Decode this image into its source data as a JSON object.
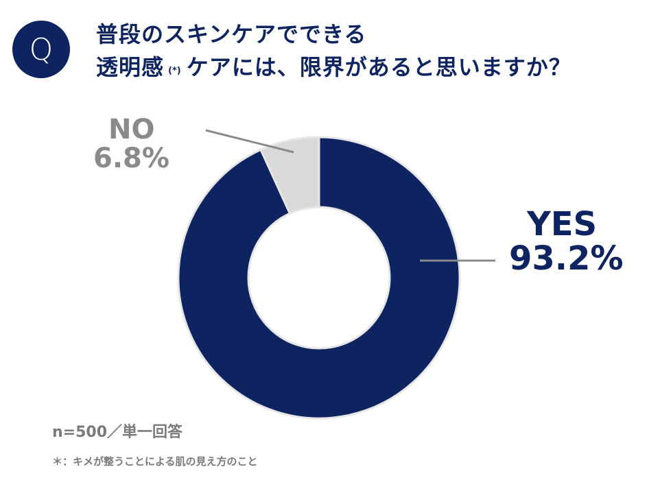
{
  "badge": {
    "letter": "Q"
  },
  "title": {
    "line1": "普段のスキンケアでできる",
    "line2_a": "透明感",
    "line2_mark": "(*)",
    "line2_b": "ケアには、限界があると思いますか？"
  },
  "chart_data": {
    "type": "pie",
    "style": "donut",
    "slices": [
      {
        "label": "YES",
        "value": 93.2,
        "display": "93.2%",
        "color": "#0d2461"
      },
      {
        "label": "NO",
        "value": 6.8,
        "display": "6.8%",
        "color": "#d9d9d9"
      }
    ],
    "leader_line_color": "#8a8a8a"
  },
  "footer": {
    "sample": "n=500／単一回答",
    "note": "＊：キメが整うことによる肌の見え方のこと"
  }
}
